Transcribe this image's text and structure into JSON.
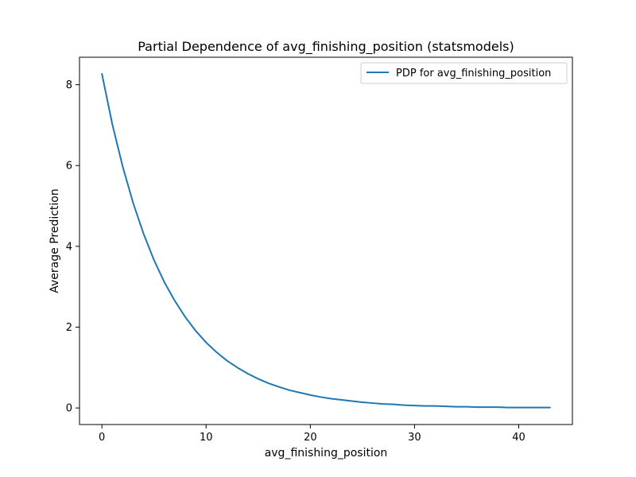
{
  "chart_data": {
    "type": "line",
    "title": "Partial Dependence of avg_finishing_position (statsmodels)",
    "xlabel": "avg_finishing_position",
    "ylabel": "Average Prediction",
    "xlim": [
      -2.15,
      45.15
    ],
    "ylim": [
      -0.41,
      8.68
    ],
    "xticks": [
      0,
      10,
      20,
      30,
      40
    ],
    "yticks": [
      0,
      2,
      4,
      6,
      8
    ],
    "grid": false,
    "legend_position": "top-right",
    "series": [
      {
        "name": "PDP for avg_finishing_position",
        "color": "#1f77b4",
        "x": [
          0,
          1,
          2,
          3,
          4,
          5,
          6,
          7,
          8,
          9,
          10,
          11,
          12,
          13,
          14,
          15,
          16,
          17,
          18,
          19,
          20,
          21,
          22,
          23,
          24,
          25,
          26,
          27,
          28,
          29,
          30,
          31,
          32,
          33,
          34,
          35,
          36,
          37,
          38,
          39,
          40,
          41,
          42,
          43
        ],
        "y": [
          8.27,
          7.02,
          5.97,
          5.07,
          4.31,
          3.66,
          3.11,
          2.65,
          2.25,
          1.91,
          1.62,
          1.38,
          1.17,
          1.0,
          0.85,
          0.72,
          0.61,
          0.52,
          0.44,
          0.38,
          0.32,
          0.27,
          0.23,
          0.2,
          0.17,
          0.14,
          0.12,
          0.1,
          0.09,
          0.07,
          0.06,
          0.05,
          0.05,
          0.04,
          0.03,
          0.03,
          0.02,
          0.02,
          0.02,
          0.01,
          0.01,
          0.01,
          0.01,
          0.01
        ]
      }
    ]
  }
}
